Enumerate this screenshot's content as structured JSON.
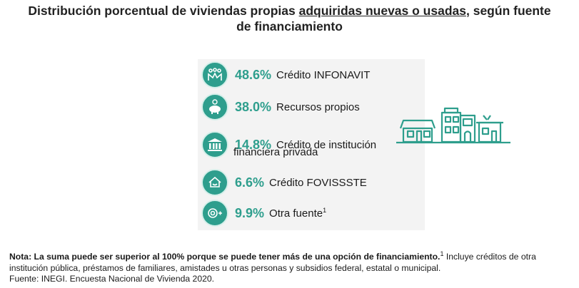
{
  "title": {
    "part1": "Distribución porcentual de viviendas propias ",
    "underlined": "adquiridas nuevas o usadas,",
    "part2": " según fuente",
    "line2": "de financiamiento"
  },
  "items": [
    {
      "pct": "48.6%",
      "label": "Crédito INFONAVIT",
      "icon": "infonavit-icon"
    },
    {
      "pct": "38.0%",
      "label": "Recursos propios",
      "icon": "piggy-bank-icon"
    },
    {
      "pct": "14.8%",
      "label": "Crédito de institución",
      "label2": "financiera privada",
      "icon": "bank-building-icon"
    },
    {
      "pct": "6.6%",
      "label": "Crédito FOVISSSTE",
      "icon": "fovissste-icon"
    },
    {
      "pct": "9.9%",
      "label": "Otra fuente",
      "sup": "1",
      "icon": "coin-plus-icon"
    }
  ],
  "note": {
    "bold": "Nota: La suma puede ser superior al 100% porque se puede tener más de una opción de financiamiento.",
    "sup": "1",
    "rest": " Incluye créditos de otra institución pública, préstamos de familiares, amistades u otras personas y subsidios federal, estatal o municipal."
  },
  "source": "Fuente: INEGI. Encuesta Nacional de Vivienda 2020.",
  "colors": {
    "accent": "#2e9e8d",
    "panel": "#f3f3f3"
  }
}
